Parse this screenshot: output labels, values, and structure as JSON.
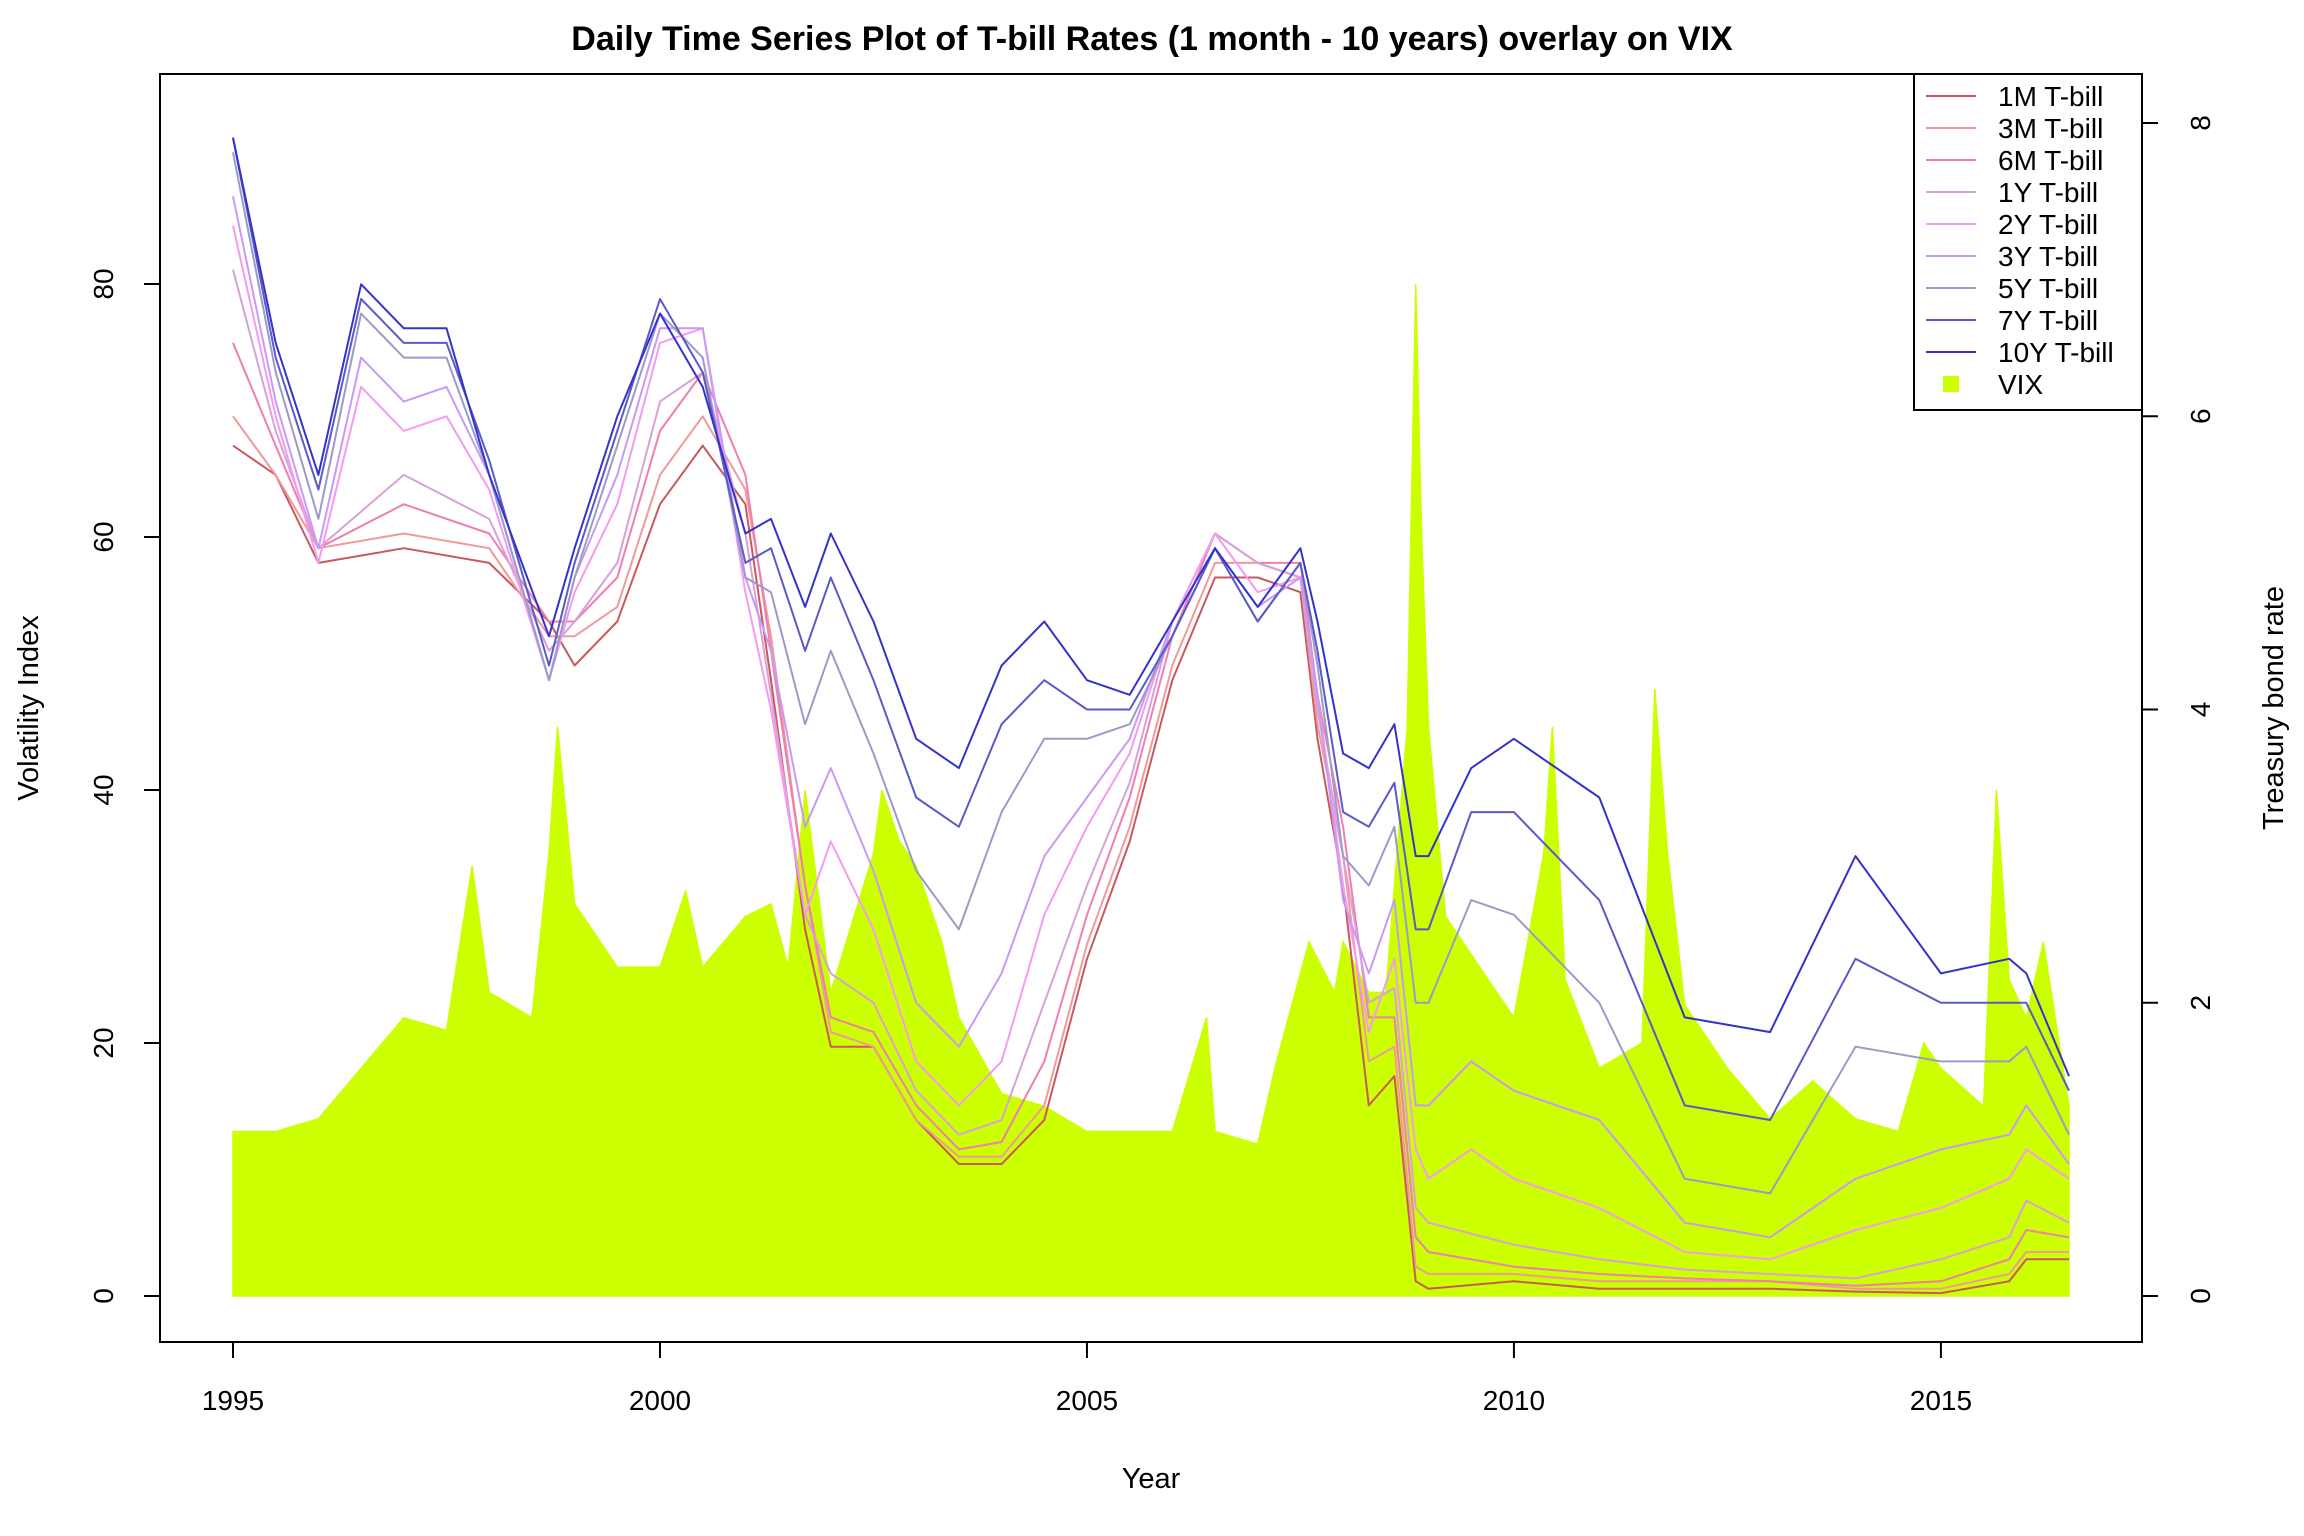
{
  "chart_data": {
    "type": "line",
    "title": "Daily Time Series Plot of T-bill Rates (1 month - 10 years) overlay on VIX",
    "xlabel": "Year",
    "ylabel": "Volatility Index",
    "ylabel_right": "Treasury bond rate",
    "xlim": [
      1995,
      2016.5
    ],
    "ylim": [
      0,
      90
    ],
    "ylim_right": [
      0,
      8
    ],
    "xticks": [
      "1995",
      "2000",
      "2005",
      "2010",
      "2015"
    ],
    "yticks": [
      "0",
      "20",
      "40",
      "60",
      "80"
    ],
    "yticks_right": [
      "0",
      "2",
      "4",
      "6",
      "8"
    ],
    "grid": false,
    "legend_position": "top-right",
    "vix": {
      "name": "VIX",
      "axis": "left",
      "style": "area",
      "color": "#ccff00",
      "x": [
        1995.0,
        1995.5,
        1996.0,
        1996.5,
        1997.0,
        1997.5,
        1997.8,
        1998.0,
        1998.5,
        1998.7,
        1998.8,
        1999.0,
        1999.5,
        2000.0,
        2000.3,
        2000.5,
        2001.0,
        2001.3,
        2001.5,
        2001.7,
        2002.0,
        2002.5,
        2002.6,
        2002.8,
        2003.0,
        2003.3,
        2003.5,
        2004.0,
        2004.5,
        2005.0,
        2005.5,
        2006.0,
        2006.4,
        2006.5,
        2007.0,
        2007.2,
        2007.6,
        2007.9,
        2008.0,
        2008.3,
        2008.5,
        2008.75,
        2008.85,
        2008.92,
        2009.0,
        2009.2,
        2009.5,
        2010.0,
        2010.35,
        2010.45,
        2010.6,
        2011.0,
        2011.5,
        2011.65,
        2011.8,
        2012.0,
        2012.5,
        2013.0,
        2013.5,
        2014.0,
        2014.5,
        2014.8,
        2015.0,
        2015.5,
        2015.65,
        2015.8,
        2016.0,
        2016.2,
        2016.5
      ],
      "values": [
        13,
        13,
        14,
        18,
        22,
        21,
        34,
        24,
        22,
        35,
        45,
        31,
        26,
        26,
        32,
        26,
        30,
        31,
        26,
        40,
        24,
        35,
        40,
        36,
        34,
        28,
        22,
        16,
        15,
        13,
        13,
        13,
        22,
        13,
        12,
        18,
        28,
        24,
        28,
        24,
        24,
        45,
        80,
        60,
        45,
        30,
        27,
        22,
        35,
        45,
        25,
        18,
        20,
        48,
        35,
        23,
        18,
        14,
        17,
        14,
        13,
        20,
        18,
        15,
        40,
        25,
        22,
        28,
        15
      ]
    },
    "series": [
      {
        "name": "1M T-bill",
        "color": "#c9595c",
        "x": [
          1995.0,
          1995.5,
          1996.0,
          1997.0,
          1998.0,
          1998.7,
          1999.0,
          1999.5,
          2000.0,
          2000.5,
          2001.0,
          2001.3,
          2001.7,
          2002.0,
          2002.5,
          2003.0,
          2003.5,
          2004.0,
          2004.5,
          2005.0,
          2005.5,
          2006.0,
          2006.5,
          2007.0,
          2007.5,
          2007.7,
          2008.0,
          2008.3,
          2008.6,
          2008.85,
          2009.0,
          2010.0,
          2011.0,
          2012.0,
          2013.0,
          2014.0,
          2015.0,
          2015.8,
          2016.0,
          2016.5
        ],
        "values": [
          5.8,
          5.6,
          5.0,
          5.1,
          5.0,
          4.6,
          4.3,
          4.6,
          5.4,
          5.8,
          5.4,
          4.2,
          2.5,
          1.7,
          1.7,
          1.2,
          0.9,
          0.9,
          1.2,
          2.3,
          3.1,
          4.2,
          4.9,
          4.9,
          4.8,
          3.8,
          2.8,
          1.3,
          1.5,
          0.1,
          0.05,
          0.1,
          0.05,
          0.05,
          0.05,
          0.03,
          0.02,
          0.1,
          0.25,
          0.25
        ]
      },
      {
        "name": "3M T-bill",
        "color": "#f09a9c",
        "x": [
          1995.0,
          1995.5,
          1996.0,
          1997.0,
          1998.0,
          1998.7,
          1999.0,
          1999.5,
          2000.0,
          2000.5,
          2001.0,
          2001.3,
          2001.7,
          2002.0,
          2002.5,
          2003.0,
          2003.5,
          2004.0,
          2004.5,
          2005.0,
          2005.5,
          2006.0,
          2006.5,
          2007.0,
          2007.5,
          2007.7,
          2008.0,
          2008.3,
          2008.6,
          2008.85,
          2009.0,
          2010.0,
          2011.0,
          2012.0,
          2013.0,
          2014.0,
          2015.0,
          2015.8,
          2016.0,
          2016.5
        ],
        "values": [
          6.0,
          5.6,
          5.1,
          5.2,
          5.1,
          4.5,
          4.5,
          4.7,
          5.6,
          6.0,
          5.5,
          4.5,
          2.8,
          1.8,
          1.7,
          1.2,
          0.95,
          0.95,
          1.3,
          2.4,
          3.2,
          4.3,
          5.0,
          5.0,
          4.9,
          3.9,
          3.0,
          1.6,
          1.7,
          0.2,
          0.15,
          0.15,
          0.1,
          0.1,
          0.1,
          0.05,
          0.05,
          0.15,
          0.3,
          0.3
        ]
      },
      {
        "name": "6M T-bill",
        "color": "#f07eb0",
        "x": [
          1995.0,
          1995.5,
          1996.0,
          1997.0,
          1998.0,
          1998.7,
          1999.0,
          1999.5,
          2000.0,
          2000.5,
          2001.0,
          2001.3,
          2001.7,
          2002.0,
          2002.5,
          2003.0,
          2003.5,
          2004.0,
          2004.5,
          2005.0,
          2005.5,
          2006.0,
          2006.5,
          2007.0,
          2007.5,
          2007.7,
          2008.0,
          2008.3,
          2008.6,
          2008.85,
          2009.0,
          2010.0,
          2011.0,
          2012.0,
          2013.0,
          2014.0,
          2015.0,
          2015.8,
          2016.0,
          2016.5
        ],
        "values": [
          6.5,
          5.8,
          5.1,
          5.4,
          5.2,
          4.6,
          4.6,
          4.9,
          5.9,
          6.3,
          5.6,
          4.4,
          2.8,
          1.9,
          1.8,
          1.3,
          1.0,
          1.05,
          1.6,
          2.6,
          3.4,
          4.5,
          5.2,
          5.0,
          5.0,
          4.1,
          3.2,
          1.9,
          1.9,
          0.4,
          0.3,
          0.2,
          0.15,
          0.12,
          0.1,
          0.07,
          0.1,
          0.25,
          0.45,
          0.4
        ]
      },
      {
        "name": "1Y T-bill",
        "color": "#d8a1d8",
        "x": [
          1995.0,
          1995.5,
          1996.0,
          1997.0,
          1998.0,
          1998.7,
          1999.0,
          1999.5,
          2000.0,
          2000.5,
          2001.0,
          2001.3,
          2001.7,
          2002.0,
          2002.5,
          2003.0,
          2003.5,
          2004.0,
          2004.5,
          2005.0,
          2005.5,
          2006.0,
          2006.5,
          2007.0,
          2007.5,
          2007.7,
          2008.0,
          2008.3,
          2008.6,
          2008.85,
          2009.0,
          2010.0,
          2011.0,
          2012.0,
          2013.0,
          2014.0,
          2015.0,
          2015.8,
          2016.0,
          2016.5
        ],
        "values": [
          7.0,
          5.9,
          5.1,
          5.6,
          5.3,
          4.4,
          4.6,
          5.0,
          6.1,
          6.3,
          5.2,
          4.1,
          2.6,
          2.2,
          2.0,
          1.4,
          1.1,
          1.2,
          2.0,
          2.8,
          3.5,
          4.6,
          5.2,
          5.0,
          4.9,
          4.0,
          3.0,
          2.0,
          2.1,
          0.6,
          0.5,
          0.35,
          0.25,
          0.18,
          0.15,
          0.12,
          0.25,
          0.4,
          0.65,
          0.5
        ]
      },
      {
        "name": "2Y T-bill",
        "color": "#f59af0",
        "x": [
          1995.0,
          1995.5,
          1996.0,
          1996.5,
          1997.0,
          1997.5,
          1998.0,
          1998.7,
          1999.0,
          1999.5,
          2000.0,
          2000.5,
          2001.0,
          2001.3,
          2001.7,
          2002.0,
          2002.5,
          2003.0,
          2003.5,
          2004.0,
          2004.5,
          2005.0,
          2005.5,
          2006.0,
          2006.5,
          2007.0,
          2007.5,
          2007.7,
          2008.0,
          2008.3,
          2008.6,
          2008.85,
          2009.0,
          2009.5,
          2010.0,
          2011.0,
          2012.0,
          2013.0,
          2014.0,
          2015.0,
          2015.8,
          2016.0,
          2016.5
        ],
        "values": [
          7.3,
          6.0,
          5.0,
          6.2,
          5.9,
          6.0,
          5.5,
          4.2,
          4.8,
          5.4,
          6.5,
          6.6,
          4.8,
          4.0,
          2.6,
          3.1,
          2.5,
          1.6,
          1.3,
          1.6,
          2.6,
          3.2,
          3.7,
          4.6,
          5.2,
          4.8,
          4.9,
          4.1,
          2.8,
          1.8,
          2.3,
          1.0,
          0.8,
          1.0,
          0.8,
          0.6,
          0.3,
          0.25,
          0.45,
          0.6,
          0.8,
          1.0,
          0.8
        ]
      },
      {
        "name": "3Y T-bill",
        "color": "#c89af5",
        "x": [
          1995.0,
          1995.5,
          1996.0,
          1996.5,
          1997.0,
          1997.5,
          1998.0,
          1998.7,
          1999.0,
          1999.5,
          2000.0,
          2000.5,
          2001.0,
          2001.3,
          2001.7,
          2002.0,
          2002.5,
          2003.0,
          2003.5,
          2004.0,
          2004.5,
          2005.0,
          2005.5,
          2006.0,
          2006.5,
          2007.0,
          2007.5,
          2007.7,
          2008.0,
          2008.3,
          2008.6,
          2008.85,
          2009.0,
          2009.5,
          2010.0,
          2011.0,
          2012.0,
          2013.0,
          2014.0,
          2015.0,
          2015.8,
          2016.0,
          2016.5
        ],
        "values": [
          7.5,
          6.1,
          5.1,
          6.4,
          6.1,
          6.2,
          5.6,
          4.2,
          4.9,
          5.6,
          6.6,
          6.6,
          4.9,
          4.4,
          3.2,
          3.6,
          2.9,
          2.0,
          1.7,
          2.2,
          3.0,
          3.4,
          3.8,
          4.6,
          5.1,
          4.7,
          4.9,
          4.1,
          2.7,
          2.2,
          2.7,
          1.3,
          1.3,
          1.6,
          1.4,
          1.2,
          0.5,
          0.4,
          0.8,
          1.0,
          1.1,
          1.3,
          0.9
        ]
      },
      {
        "name": "5Y T-bill",
        "color": "#9b9bc9",
        "x": [
          1995.0,
          1995.5,
          1996.0,
          1996.5,
          1997.0,
          1997.5,
          1998.0,
          1998.7,
          1999.0,
          1999.5,
          2000.0,
          2000.5,
          2001.0,
          2001.3,
          2001.7,
          2002.0,
          2002.5,
          2003.0,
          2003.5,
          2004.0,
          2004.5,
          2005.0,
          2005.5,
          2006.0,
          2006.5,
          2007.0,
          2007.5,
          2007.7,
          2008.0,
          2008.3,
          2008.6,
          2008.85,
          2009.0,
          2009.5,
          2010.0,
          2011.0,
          2012.0,
          2013.0,
          2014.0,
          2015.0,
          2015.8,
          2016.0,
          2016.5
        ],
        "values": [
          7.8,
          6.3,
          5.3,
          6.7,
          6.4,
          6.4,
          5.6,
          4.2,
          4.9,
          5.8,
          6.7,
          6.4,
          4.9,
          4.8,
          3.9,
          4.4,
          3.7,
          2.9,
          2.5,
          3.3,
          3.8,
          3.8,
          3.9,
          4.5,
          5.1,
          4.6,
          5.0,
          4.3,
          3.0,
          2.8,
          3.2,
          2.0,
          2.0,
          2.7,
          2.6,
          2.0,
          0.8,
          0.7,
          1.7,
          1.6,
          1.6,
          1.7,
          1.1
        ]
      },
      {
        "name": "7Y T-bill",
        "color": "#5a5ac8",
        "x": [
          1995.0,
          1995.5,
          1996.0,
          1996.5,
          1997.0,
          1997.5,
          1998.0,
          1998.7,
          1999.0,
          1999.5,
          2000.0,
          2000.5,
          2001.0,
          2001.3,
          2001.7,
          2002.0,
          2002.5,
          2003.0,
          2003.5,
          2004.0,
          2004.5,
          2005.0,
          2005.5,
          2006.0,
          2006.5,
          2007.0,
          2007.5,
          2007.7,
          2008.0,
          2008.3,
          2008.6,
          2008.85,
          2009.0,
          2009.5,
          2010.0,
          2011.0,
          2012.0,
          2013.0,
          2014.0,
          2015.0,
          2015.8,
          2016.0,
          2016.5
        ],
        "values": [
          7.9,
          6.4,
          5.5,
          6.8,
          6.5,
          6.5,
          5.7,
          4.3,
          5.0,
          5.9,
          6.8,
          6.3,
          5.0,
          5.1,
          4.4,
          4.9,
          4.2,
          3.4,
          3.2,
          3.9,
          4.2,
          4.0,
          4.0,
          4.5,
          5.1,
          4.6,
          5.0,
          4.4,
          3.3,
          3.2,
          3.5,
          2.5,
          2.5,
          3.3,
          3.3,
          2.7,
          1.3,
          1.2,
          2.3,
          2.0,
          2.0,
          2.0,
          1.4
        ]
      },
      {
        "name": "10Y T-bill",
        "color": "#3333cc",
        "x": [
          1995.0,
          1995.5,
          1996.0,
          1996.5,
          1997.0,
          1997.5,
          1998.0,
          1998.7,
          1999.0,
          1999.5,
          2000.0,
          2000.5,
          2001.0,
          2001.3,
          2001.7,
          2002.0,
          2002.5,
          2003.0,
          2003.5,
          2004.0,
          2004.5,
          2005.0,
          2005.5,
          2006.0,
          2006.5,
          2007.0,
          2007.5,
          2007.7,
          2008.0,
          2008.3,
          2008.6,
          2008.85,
          2009.0,
          2009.5,
          2010.0,
          2011.0,
          2012.0,
          2013.0,
          2014.0,
          2015.0,
          2015.8,
          2016.0,
          2016.5
        ],
        "values": [
          7.9,
          6.5,
          5.6,
          6.9,
          6.6,
          6.6,
          5.6,
          4.5,
          5.1,
          6.0,
          6.7,
          6.2,
          5.2,
          5.3,
          4.7,
          5.2,
          4.6,
          3.8,
          3.6,
          4.3,
          4.6,
          4.2,
          4.1,
          4.6,
          5.1,
          4.7,
          5.1,
          4.6,
          3.7,
          3.6,
          3.9,
          3.0,
          3.0,
          3.6,
          3.8,
          3.4,
          1.9,
          1.8,
          3.0,
          2.2,
          2.3,
          2.2,
          1.5
        ]
      }
    ]
  }
}
